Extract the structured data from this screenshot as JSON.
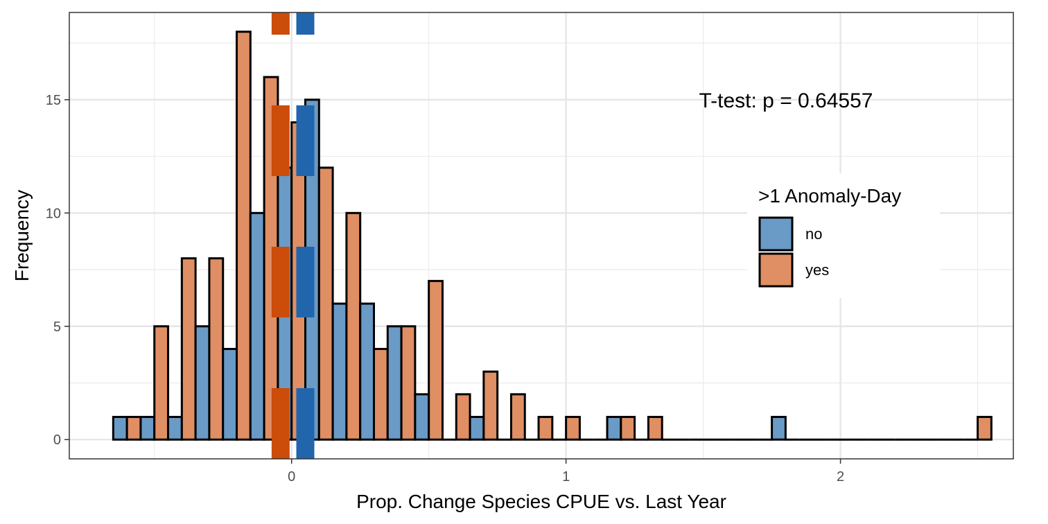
{
  "chart_data": {
    "type": "bar",
    "title": "",
    "xlabel": "Prop. Change Species CPUE vs. Last Year",
    "ylabel": "Frequency",
    "xlim": [
      -0.81,
      2.63
    ],
    "ylim": [
      -0.85,
      18.85
    ],
    "x_ticks": [
      0,
      1,
      2
    ],
    "x_tick_labels": [
      "0",
      "1",
      "2"
    ],
    "y_ticks": [
      0,
      5,
      10,
      15
    ],
    "y_tick_labels": [
      "0",
      "5",
      "10",
      "15"
    ],
    "grid": true,
    "bin_starts": [
      -0.65,
      -0.55,
      -0.45,
      -0.35,
      -0.25,
      -0.15,
      -0.05,
      0.05,
      0.15,
      0.25,
      0.35,
      0.45,
      0.55,
      0.65,
      0.75,
      0.85,
      0.95,
      1.05,
      1.15,
      1.25,
      1.35,
      1.45,
      1.55,
      1.65,
      1.75,
      1.85,
      1.95,
      2.05,
      2.15,
      2.25,
      2.35,
      2.45
    ],
    "bin_width": 0.1,
    "legend_title": ">1 Anomaly-Day",
    "legend_position": "right-center",
    "series": [
      {
        "name": "no",
        "color": "#6a9ac6",
        "values": [
          1,
          1,
          1,
          5,
          4,
          10,
          12,
          15,
          6,
          6,
          5,
          2,
          0,
          1,
          0,
          0,
          0,
          0,
          1,
          0,
          0,
          0,
          0,
          0,
          1,
          0,
          0,
          0,
          0,
          0,
          0,
          0
        ]
      },
      {
        "name": "yes",
        "color": "#e08e63",
        "values": [
          1,
          5,
          8,
          8,
          18,
          16,
          14,
          12,
          10,
          4,
          5,
          7,
          2,
          3,
          2,
          1,
          1,
          0,
          1,
          1,
          0,
          0,
          0,
          0,
          0,
          0,
          0,
          0,
          0,
          0,
          0,
          1
        ]
      }
    ],
    "mean_lines": [
      {
        "group": "yes",
        "x": -0.04,
        "color": "#cc4c0a"
      },
      {
        "group": "no",
        "x": 0.05,
        "color": "#2166ac"
      }
    ],
    "annotation": "T-test: p = 0.64557"
  }
}
